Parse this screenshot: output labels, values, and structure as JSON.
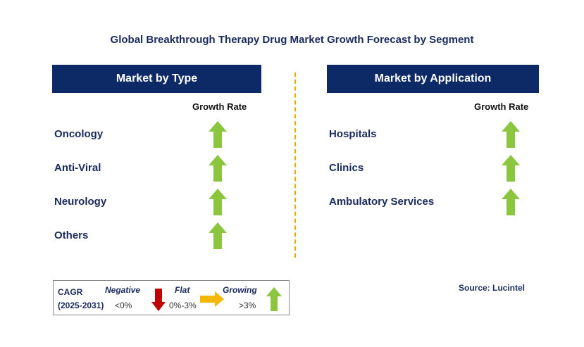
{
  "title": "Global Breakthrough Therapy Drug Market Growth Forecast by Segment",
  "left_panel": {
    "header": "Market by Type",
    "growth_rate_label": "Growth Rate",
    "items": [
      {
        "label": "Oncology",
        "trend": "growing"
      },
      {
        "label": "Anti-Viral",
        "trend": "growing"
      },
      {
        "label": "Neurology",
        "trend": "growing"
      },
      {
        "label": "Others",
        "trend": "growing"
      }
    ]
  },
  "right_panel": {
    "header": "Market by Application",
    "growth_rate_label": "Growth Rate",
    "items": [
      {
        "label": "Hospitals",
        "trend": "growing"
      },
      {
        "label": "Clinics",
        "trend": "growing"
      },
      {
        "label": "Ambulatory Services",
        "trend": "growing"
      }
    ]
  },
  "legend": {
    "cagr_label": "CAGR",
    "period": "(2025-2031)",
    "negative_label": "Negative",
    "negative_value": "<0%",
    "flat_label": "Flat",
    "flat_value": "0%-3%",
    "growing_label": "Growing",
    "growing_value": ">3%"
  },
  "source": "Source: Lucintel",
  "colors": {
    "header_bg": "#0e2a66",
    "growing": "#8cc63f",
    "flat": "#f5b800",
    "negative": "#c00000",
    "divider": "#f0a800"
  }
}
